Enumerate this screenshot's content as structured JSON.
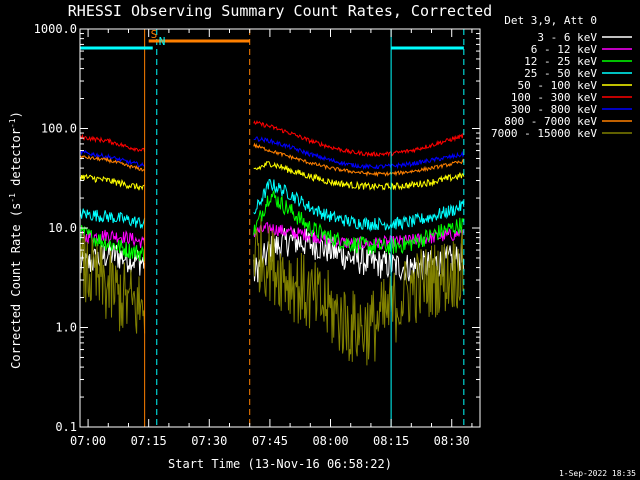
{
  "chart_data": {
    "type": "line",
    "title": "RHESSI Observing Summary Count Rates, Corrected",
    "xlabel": "Start Time (13-Nov-16 06:58:22)",
    "ylabel": "Corrected Count Rate (s⁻¹ detector⁻¹)",
    "ylabel_parts": {
      "main": "Corrected Count Rate (s",
      "sup1": "-1",
      "mid": " detector",
      "sup2": "-1",
      "end": ")"
    },
    "yscale": "log",
    "ylim": [
      0.1,
      1000
    ],
    "xlim": [
      "06:58",
      "08:37"
    ],
    "y_ticks": [
      "1000.0",
      "100.0",
      "10.0",
      "1.0",
      "0.1"
    ],
    "x_ticks": [
      "07:00",
      "07:15",
      "07:30",
      "07:45",
      "08:00",
      "08:15",
      "08:30"
    ],
    "legend_header": "Det 3,9, Att 0",
    "legend_position": "top-right",
    "timestamp": "1-Sep-2022 18:35",
    "gap": {
      "start": "07:17",
      "end": "07:40"
    },
    "attenuator_bars": [
      {
        "label": "",
        "color": "#00ffff",
        "start": "06:58",
        "end": "07:16"
      },
      {
        "label": "S",
        "color": "#ff8000",
        "start": "07:15",
        "end": "07:40"
      },
      {
        "label": "N",
        "color": "#00ffff",
        "start": "07:17",
        "end": "07:17"
      },
      {
        "label": "",
        "color": "#00ffff",
        "start": "08:15",
        "end": "08:33"
      }
    ],
    "vertical_markers": [
      {
        "time": "06:58",
        "color": "#00ffff",
        "style": "solid"
      },
      {
        "time": "07:14",
        "color": "#ff8000",
        "style": "solid"
      },
      {
        "time": "07:17",
        "color": "#00ffff",
        "style": "dashed"
      },
      {
        "time": "07:40",
        "color": "#ff8000",
        "style": "dashed"
      },
      {
        "time": "08:15",
        "color": "#00ffff",
        "style": "solid"
      },
      {
        "time": "08:33",
        "color": "#00ffff",
        "style": "dashed"
      }
    ],
    "series": [
      {
        "name": "3 - 6 keV",
        "color": "#ffffff",
        "values": [
          4.0,
          5.5,
          5.0,
          4.5,
          3.5,
          6.0,
          7.5,
          7.0,
          6.0,
          5.0,
          4.5,
          4.2,
          4.0,
          4.3,
          4.8,
          5.0
        ],
        "noise": 0.35
      },
      {
        "name": "6 - 12 keV",
        "color": "#ff00ff",
        "values": [
          8.0,
          8.5,
          8.0,
          7.0,
          9.0,
          10.0,
          9.0,
          8.5,
          7.5,
          7.0,
          7.0,
          7.2,
          7.5,
          8.0,
          8.5,
          9.0
        ],
        "noise": 0.15
      },
      {
        "name": "12 - 25 keV",
        "color": "#00ff00",
        "values": [
          9.0,
          7.0,
          6.0,
          5.5,
          9.0,
          22.0,
          15.0,
          10.0,
          8.0,
          7.0,
          6.5,
          6.5,
          7.0,
          8.5,
          10.0,
          11.0
        ],
        "noise": 0.2
      },
      {
        "name": "25 - 50 keV",
        "color": "#00ffff",
        "values": [
          14.0,
          13.0,
          12.0,
          11.0,
          14.0,
          28.0,
          22.0,
          16.0,
          13.0,
          11.5,
          11.0,
          11.0,
          11.5,
          13.0,
          15.0,
          17.0
        ],
        "noise": 0.15
      },
      {
        "name": "50 - 100 keV",
        "color": "#ffff00",
        "values": [
          33.0,
          30.0,
          27.0,
          25.0,
          38.0,
          45.0,
          38.0,
          33.0,
          29.0,
          27.0,
          26.0,
          26.0,
          27.0,
          29.0,
          32.0,
          34.0
        ],
        "noise": 0.08
      },
      {
        "name": "100 - 300 keV",
        "color": "#ff0000",
        "values": [
          82.0,
          75.0,
          65.0,
          60.0,
          115.0,
          105.0,
          90.0,
          75.0,
          65.0,
          58.0,
          55.0,
          56.0,
          60.0,
          68.0,
          78.0,
          85.0
        ],
        "noise": 0.05
      },
      {
        "name": "300 - 800 keV",
        "color": "#0000ff",
        "values": [
          58.0,
          52.0,
          46.0,
          42.0,
          80.0,
          75.0,
          65.0,
          55.0,
          48.0,
          43.0,
          41.0,
          42.0,
          44.0,
          48.0,
          52.0,
          55.0
        ],
        "noise": 0.05
      },
      {
        "name": "800 - 7000 keV",
        "color": "#ff8000",
        "values": [
          52.0,
          48.0,
          42.0,
          38.0,
          68.0,
          60.0,
          52.0,
          45.0,
          40.0,
          37.0,
          35.0,
          35.0,
          37.0,
          40.0,
          44.0,
          47.0
        ],
        "noise": 0.04
      },
      {
        "name": "7000 - 15000 keV",
        "color": "#808000",
        "values": [
          4.0,
          2.5,
          1.8,
          1.5,
          6.0,
          4.5,
          3.0,
          2.0,
          1.5,
          1.0,
          1.0,
          1.5,
          2.5,
          3.0,
          3.5,
          4.0
        ],
        "noise": 0.9
      }
    ],
    "x_samples": [
      "06:58",
      "07:05",
      "07:10",
      "07:14",
      "07:41",
      "07:45",
      "07:50",
      "07:55",
      "08:00",
      "08:05",
      "08:10",
      "08:15",
      "08:20",
      "08:25",
      "08:30",
      "08:33"
    ]
  }
}
